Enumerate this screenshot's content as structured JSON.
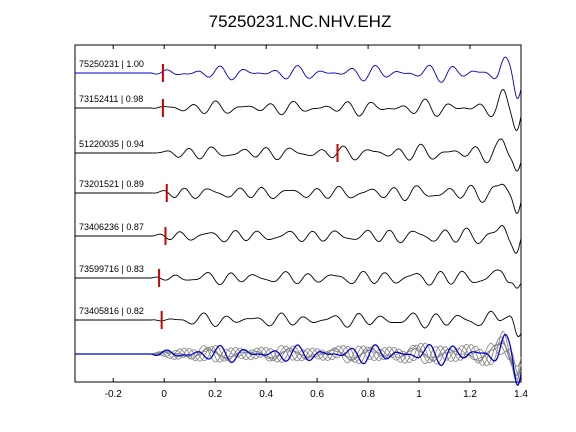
{
  "chart_data": {
    "type": "line",
    "title": "75250231.NC.NHV.EHZ",
    "xlabel": "",
    "ylabel": "",
    "xlim": [
      -0.35,
      1.4
    ],
    "x_ticks": [
      "-0.2",
      "0",
      "0.2",
      "0.4",
      "0.6",
      "0.8",
      "1",
      "1.2",
      "1.4"
    ],
    "grid": false,
    "traces": [
      {
        "label": "75250231 | 1.00",
        "pick_time": -0.005,
        "color": "#0000cc",
        "seed": 1
      },
      {
        "label": "73152411 | 0.98",
        "pick_time": -0.005,
        "color": "#000000",
        "seed": 2
      },
      {
        "label": "51220035 | 0.94",
        "pick_time": 0.68,
        "color": "#000000",
        "seed": 3
      },
      {
        "label": "73201521 | 0.89",
        "pick_time": 0.01,
        "color": "#000000",
        "seed": 4
      },
      {
        "label": "73406236 | 0.87",
        "pick_time": 0.005,
        "color": "#000000",
        "seed": 5
      },
      {
        "label": "73599716 | 0.83",
        "pick_time": -0.02,
        "color": "#000000",
        "seed": 6
      },
      {
        "label": "73405816 | 0.82",
        "pick_time": -0.01,
        "color": "#000000",
        "seed": 7
      }
    ],
    "stack": {
      "name": "",
      "color": "#0000cc",
      "overlay_color": "#808080"
    },
    "pick_color": "#cc0000"
  }
}
